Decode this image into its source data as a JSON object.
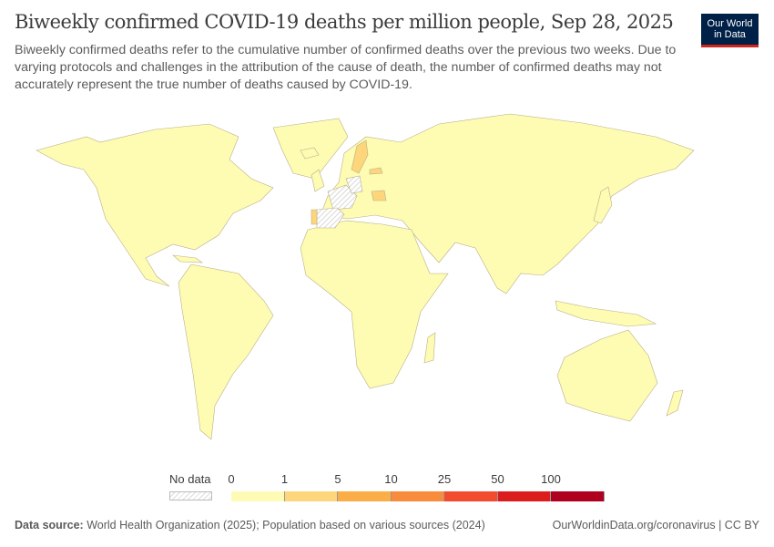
{
  "header": {
    "title": "Biweekly confirmed COVID-19 deaths per million people, Sep 28, 2025",
    "subtitle": "Biweekly confirmed deaths refer to the cumulative number of confirmed deaths over the previous two weeks. Due to varying protocols and challenges in the attribution of the cause of death, the number of confirmed deaths may not accurately represent the true number of deaths caused by COVID-19.",
    "logo_line1": "Our World",
    "logo_line2": "in Data"
  },
  "map": {
    "colors": {
      "land_default": "#fefbb3",
      "band_1_5": "#fdd57a",
      "no_data": "hatched",
      "border": "#b8b08a",
      "ocean": "#ffffff"
    },
    "countries_1_to_5": [
      "Sweden",
      "Latvia",
      "Romania",
      "Portugal"
    ],
    "countries_no_data": [
      "France",
      "Spain",
      "Germany"
    ]
  },
  "legend": {
    "no_data_label": "No data",
    "ticks": [
      "0",
      "1",
      "5",
      "10",
      "25",
      "50",
      "100"
    ],
    "bins": [
      {
        "range": "0-1",
        "color": "#fefcb4"
      },
      {
        "range": "1-5",
        "color": "#fdd57a"
      },
      {
        "range": "5-10",
        "color": "#fbad48"
      },
      {
        "range": "10-25",
        "color": "#f98b3c"
      },
      {
        "range": "25-50",
        "color": "#f24b2e"
      },
      {
        "range": "50-100",
        "color": "#db1d1d"
      },
      {
        "range": ">100",
        "color": "#b0001f"
      }
    ]
  },
  "footer": {
    "source_label": "Data source:",
    "source_text": "World Health Organization (2025); Population based on various sources (2024)",
    "link": "OurWorldinData.org/coronavirus | CC BY"
  }
}
